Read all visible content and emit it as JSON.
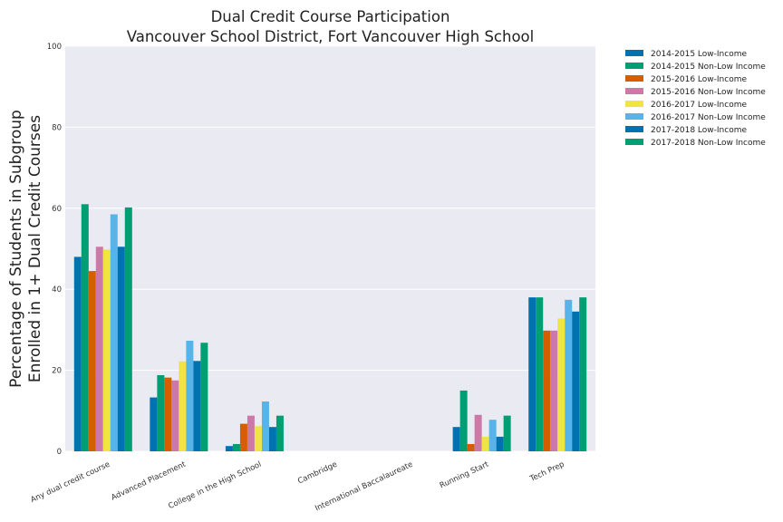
{
  "chart_data": {
    "type": "bar",
    "title": [
      "Dual Credit Course Participation",
      "Vancouver School District, Fort Vancouver High School"
    ],
    "ylabel": [
      "Percentage of Students in Subgroup",
      "Enrolled in 1+ Dual Credit Courses"
    ],
    "xlabel": "",
    "ylim": [
      0,
      100
    ],
    "yticks": [
      0,
      20,
      40,
      60,
      80,
      100
    ],
    "grid": true,
    "legend_position": "outside-top-right",
    "categories": [
      "Any dual credit course",
      "Advanced Placement",
      "College in the High School",
      "Cambridge",
      "International Baccalaureate",
      "Running Start",
      "Tech Prep"
    ],
    "series": [
      {
        "name": "2014-2015 Low-Income",
        "color": "#0072b2",
        "values": [
          48,
          13.3,
          1.3,
          0,
          0,
          6,
          38
        ]
      },
      {
        "name": "2014-2015 Non-Low Income",
        "color": "#009e73",
        "values": [
          61,
          18.8,
          1.8,
          0,
          0,
          15,
          38
        ]
      },
      {
        "name": "2015-2016 Low-Income",
        "color": "#d55e00",
        "values": [
          44.5,
          18.2,
          6.8,
          0,
          0,
          1.8,
          29.8
        ]
      },
      {
        "name": "2015-2016 Non-Low Income",
        "color": "#cc79a7",
        "values": [
          50.5,
          17.5,
          8.8,
          0,
          0,
          9,
          29.8
        ]
      },
      {
        "name": "2016-2017 Low-Income",
        "color": "#f0e442",
        "values": [
          49.8,
          22.2,
          6.2,
          0,
          0,
          3.6,
          32.8
        ]
      },
      {
        "name": "2016-2017 Non-Low Income",
        "color": "#56b4e9",
        "values": [
          58.5,
          27.3,
          12.3,
          0,
          0,
          7.8,
          37.4
        ]
      },
      {
        "name": "2017-2018 Low-Income",
        "color": "#0072b2",
        "values": [
          50.5,
          22.3,
          6,
          0,
          0,
          3.6,
          34.5
        ]
      },
      {
        "name": "2017-2018 Non-Low Income",
        "color": "#009e73",
        "values": [
          60.2,
          26.8,
          8.8,
          0,
          0,
          8.8,
          38
        ]
      }
    ]
  }
}
